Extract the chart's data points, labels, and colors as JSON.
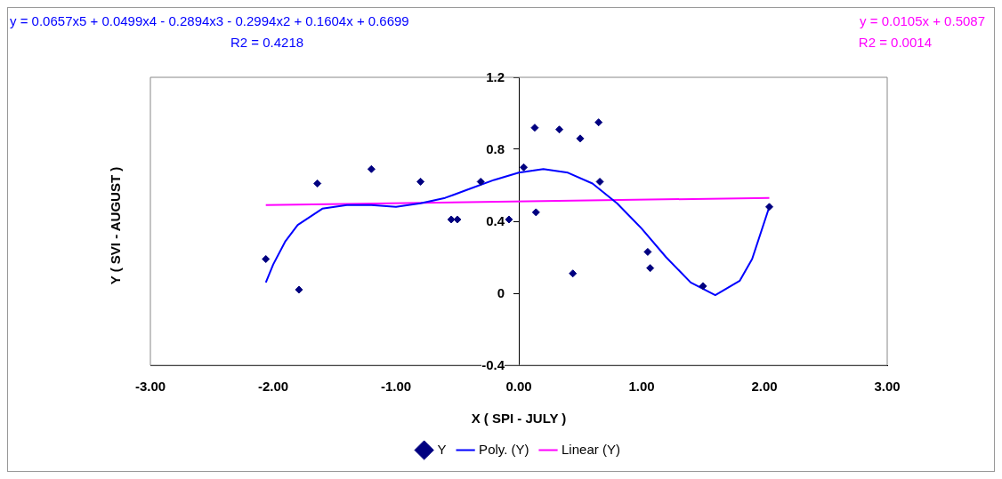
{
  "chart_data": {
    "type": "scatter",
    "xlabel": "X ( SPI - JULY )",
    "ylabel": "Y ( SVI - AUGUST )",
    "annotations": [
      "y = 0.0657x5 + 0.0499x4 - 0.2894x3 - 0.2994x2 + 0.1604x + 0.6699",
      "R2 = 0.4218",
      "y = 0.0105x + 0.5087",
      "R2 = 0.0014"
    ],
    "xlim": [
      -3,
      3
    ],
    "xticks": [
      {
        "value": -3,
        "label": "-3.00"
      },
      {
        "value": -2,
        "label": "-2.00"
      },
      {
        "value": -1,
        "label": "-1.00"
      },
      {
        "value": 0,
        "label": "0.00"
      },
      {
        "value": 1,
        "label": "1.00"
      },
      {
        "value": 2,
        "label": "2.00"
      },
      {
        "value": 3,
        "label": "3.00"
      }
    ],
    "ylim": [
      -0.4,
      1.2
    ],
    "yticks": [
      -0.4,
      0,
      0.4,
      0.8,
      1.2
    ],
    "grid": false,
    "legend": "bottom",
    "marker": "diamond",
    "series": [
      {
        "name": "Y",
        "type": "scatter",
        "color": "#000080",
        "x": [
          -2.06,
          -1.79,
          -1.64,
          -1.2,
          -0.8,
          -0.55,
          -0.5,
          -0.31,
          -0.08,
          0.04,
          0.13,
          0.14,
          0.33,
          0.44,
          0.5,
          0.65,
          0.66,
          1.05,
          1.07,
          1.5,
          2.04
        ],
        "values": [
          0.19,
          0.02,
          0.61,
          0.69,
          0.62,
          0.41,
          0.41,
          0.62,
          0.41,
          0.7,
          0.92,
          0.45,
          0.91,
          0.11,
          0.86,
          0.95,
          0.62,
          0.23,
          0.14,
          0.04,
          0.48
        ]
      },
      {
        "name": "Poly. (Y)",
        "type": "line",
        "color": "#0000ff",
        "marker": "none",
        "line_style": "solid",
        "x": [
          -2.06,
          -2.0,
          -1.9,
          -1.8,
          -1.6,
          -1.4,
          -1.2,
          -1.0,
          -0.8,
          -0.6,
          -0.4,
          -0.2,
          0,
          0.2,
          0.4,
          0.6,
          0.8,
          1.0,
          1.2,
          1.4,
          1.6,
          1.8,
          1.9,
          2.04
        ],
        "values": [
          0.06,
          0.16,
          0.29,
          0.38,
          0.47,
          0.49,
          0.49,
          0.48,
          0.5,
          0.53,
          0.58,
          0.63,
          0.67,
          0.69,
          0.67,
          0.61,
          0.5,
          0.36,
          0.2,
          0.06,
          -0.01,
          0.07,
          0.19,
          0.48
        ]
      },
      {
        "name": "Linear (Y)",
        "type": "line",
        "color": "#ff00ff",
        "marker": "none",
        "line_style": "solid",
        "x": [
          -2.06,
          2.04
        ],
        "values": [
          0.49,
          0.53
        ]
      }
    ]
  }
}
